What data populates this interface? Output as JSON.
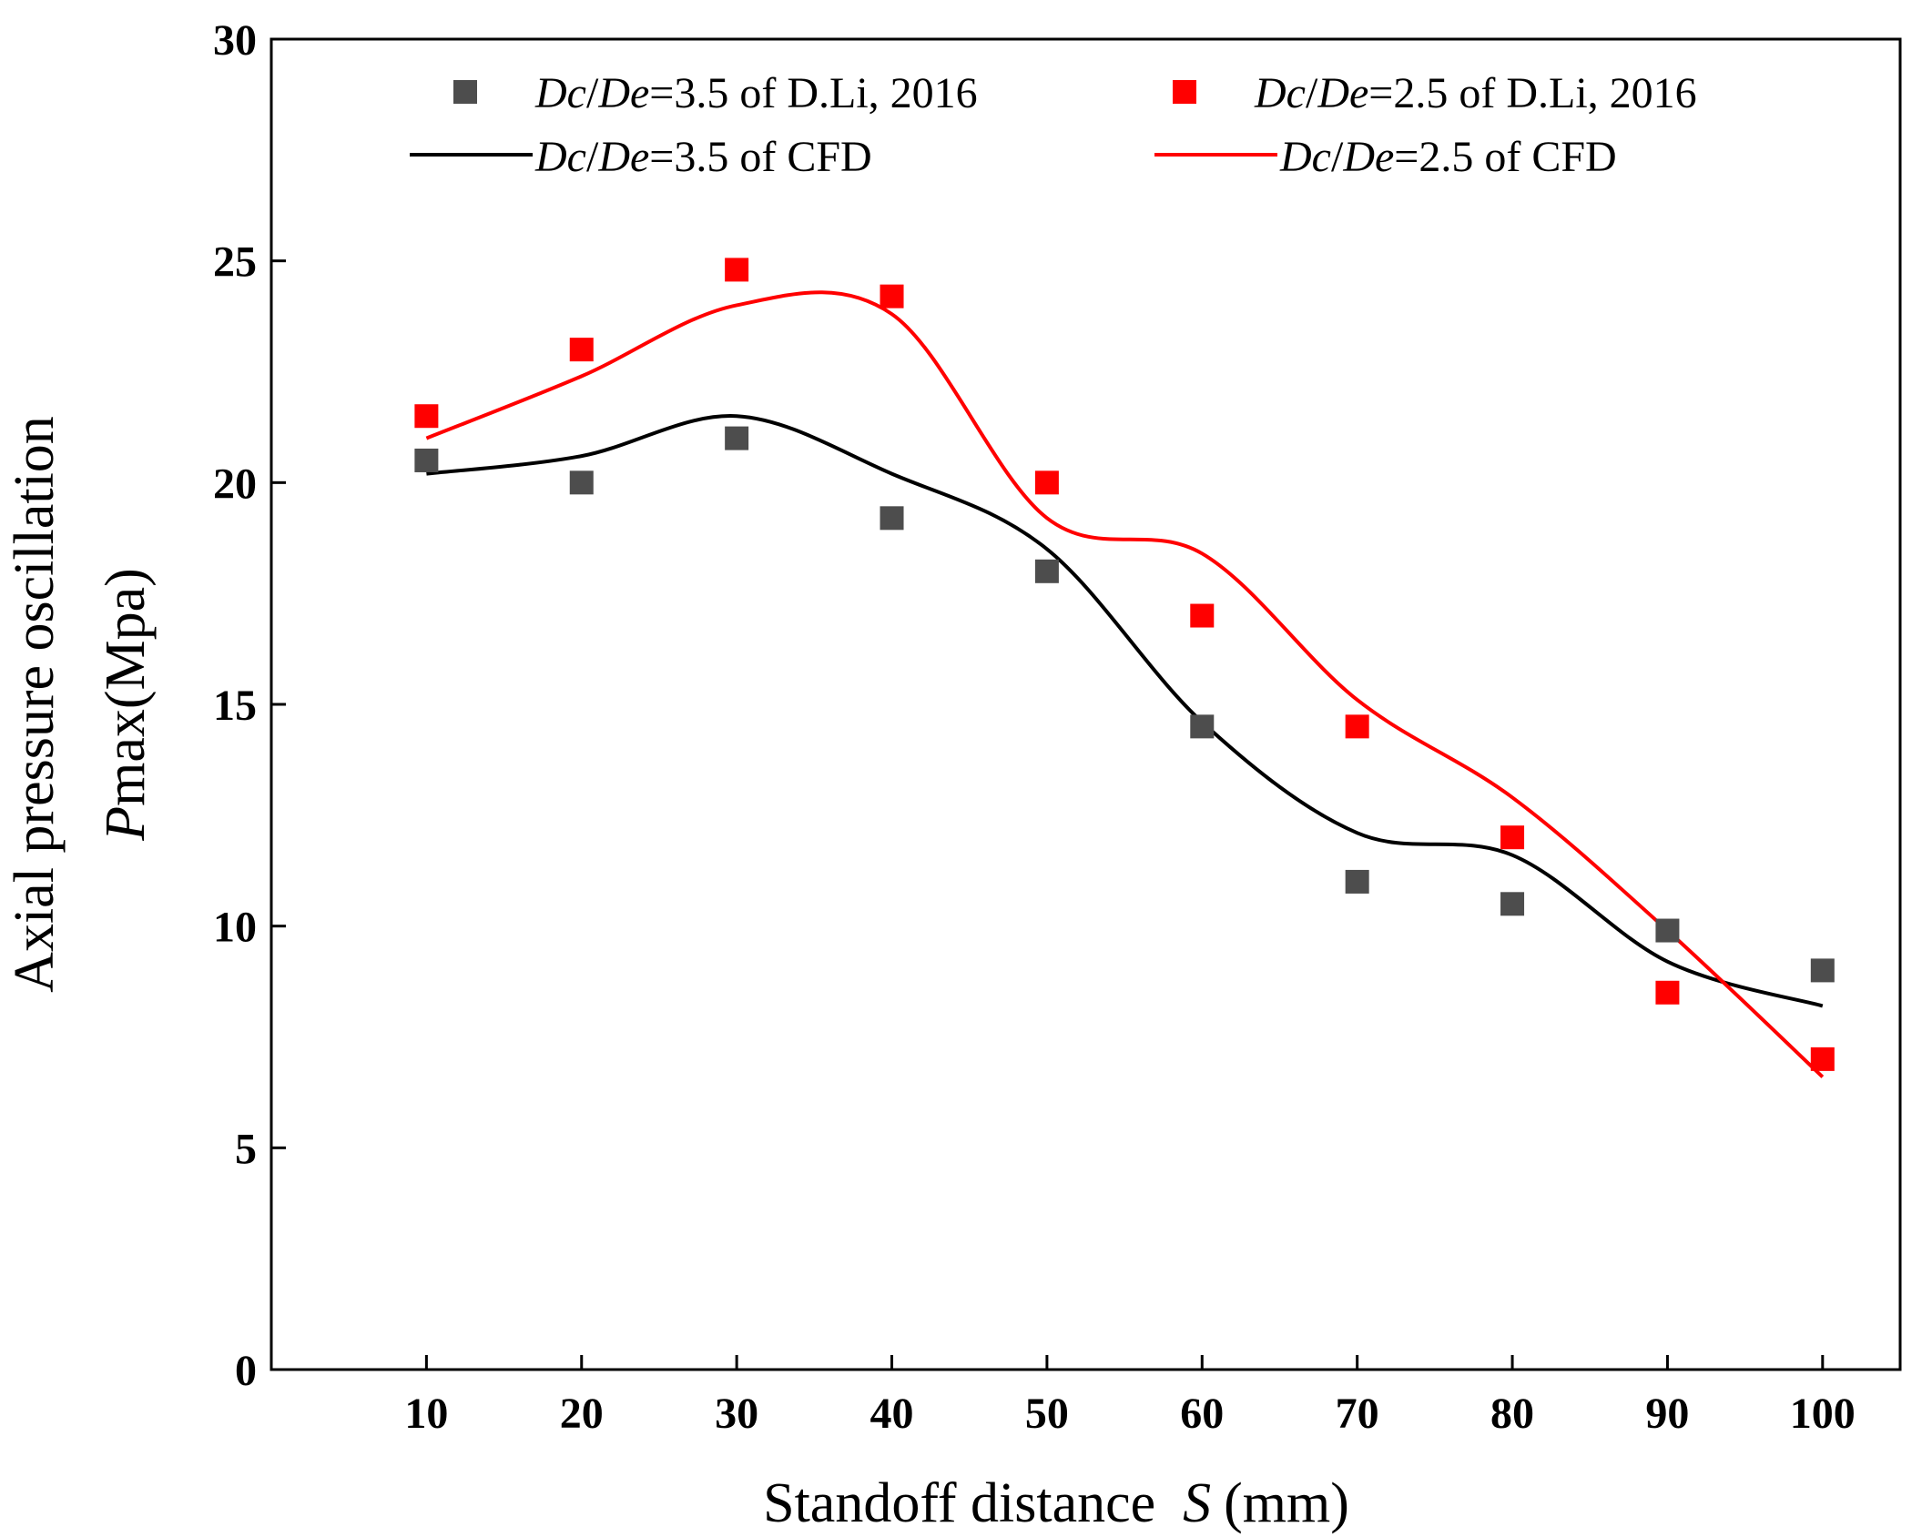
{
  "chart_data": {
    "type": "line",
    "xlabel": {
      "prefix": "Standoff distance",
      "var": "S",
      "suffix": "(mm)"
    },
    "ylabel": {
      "line1": "Axial pressure oscillation",
      "var": "P",
      "sub": "max",
      "unit": "(Mpa)"
    },
    "xlim": [
      0,
      105
    ],
    "ylim": [
      0,
      30
    ],
    "xticks": [
      10,
      20,
      30,
      40,
      50,
      60,
      70,
      80,
      90,
      100
    ],
    "yticks": [
      0,
      5,
      10,
      15,
      20,
      25,
      30
    ],
    "grid": false,
    "legend_position": "top",
    "x": [
      10,
      20,
      30,
      40,
      50,
      60,
      70,
      80,
      90,
      100
    ],
    "series": [
      {
        "name": "Dc/De=3.5 of D.Li, 2016",
        "label": {
          "a": "Dc",
          "sep": "/",
          "b": "De",
          "rest": "=3.5 of  D.Li, 2016"
        },
        "kind": "marker",
        "color": "#4d4d4d",
        "values": [
          20.5,
          20.0,
          21.0,
          19.2,
          18.0,
          14.5,
          11.0,
          10.5,
          9.9,
          9.0
        ]
      },
      {
        "name": "Dc/De=2.5 of D.Li, 2016",
        "label": {
          "a": "Dc",
          "sep": "/",
          "b": "De",
          "rest": "=2.5 of  D.Li, 2016"
        },
        "kind": "marker",
        "color": "#ff0000",
        "values": [
          21.5,
          23.0,
          24.8,
          24.2,
          20.0,
          17.0,
          14.5,
          12.0,
          8.5,
          7.0
        ]
      },
      {
        "name": "Dc/De=3.5 of CFD",
        "label": {
          "a": "Dc",
          "sep": "/",
          "b": "De",
          "rest": "=3.5 of  CFD"
        },
        "kind": "line",
        "color": "#000000",
        "values": [
          20.2,
          20.6,
          21.5,
          20.2,
          18.5,
          14.6,
          12.1,
          11.6,
          9.2,
          8.2
        ]
      },
      {
        "name": "Dc/De=2.5 of CFD",
        "label": {
          "a": "Dc",
          "sep": "/",
          "b": "De",
          "rest": "=2.5 of  CFD"
        },
        "kind": "line",
        "color": "#ff0000",
        "values": [
          21.0,
          22.4,
          24.0,
          23.8,
          19.2,
          18.4,
          15.1,
          12.9,
          9.9,
          6.6
        ]
      }
    ]
  }
}
